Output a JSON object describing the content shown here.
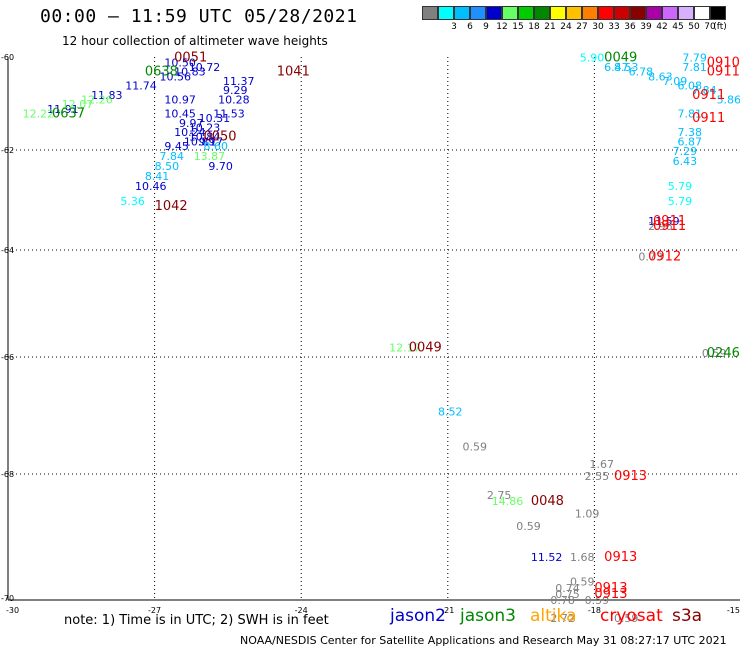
{
  "title": "00:00 – 11:59 UTC 05/28/2021",
  "subtitle": "12 hour collection of altimeter wave heights",
  "scale": {
    "unit": "(ft)",
    "swatches": [
      {
        "color": "#808080",
        "label": ""
      },
      {
        "color": "#00ffff",
        "label": "3"
      },
      {
        "color": "#00bfff",
        "label": "6"
      },
      {
        "color": "#1e90ff",
        "label": "9"
      },
      {
        "color": "#0000cd",
        "label": "12"
      },
      {
        "color": "#66ff66",
        "label": "15"
      },
      {
        "color": "#00cc00",
        "label": "18"
      },
      {
        "color": "#008800",
        "label": "21"
      },
      {
        "color": "#ffff00",
        "label": "24"
      },
      {
        "color": "#ffc000",
        "label": "27"
      },
      {
        "color": "#ff8000",
        "label": "30"
      },
      {
        "color": "#ff0000",
        "label": "33"
      },
      {
        "color": "#cc0000",
        "label": "36"
      },
      {
        "color": "#880000",
        "label": "39"
      },
      {
        "color": "#aa00aa",
        "label": "42"
      },
      {
        "color": "#cc66ff",
        "label": "45"
      },
      {
        "color": "#d8b0ff",
        "label": "50"
      },
      {
        "color": "#ffffff",
        "label": "70"
      },
      {
        "color": "#000000",
        "label": ""
      }
    ]
  },
  "axes": {
    "lat_labels": [
      "-60",
      "-62",
      "-64",
      "-66",
      "-68",
      "-70"
    ],
    "lon_labels": [
      "-30",
      "-27",
      "-24",
      "-21",
      "-18",
      "-15"
    ]
  },
  "chart_data": {
    "type": "scatter",
    "units": "ft",
    "x_label": "longitude",
    "y_label": "latitude",
    "xlim": [
      -30,
      -15
    ],
    "ylim": [
      -70,
      -60
    ],
    "points": [
      {
        "lon": -26.8,
        "lat": -60.2,
        "swh": "10.50",
        "color": "#0000cd"
      },
      {
        "lon": -26.6,
        "lat": -60.4,
        "swh": "10.83",
        "color": "#0000cd"
      },
      {
        "lon": -26.9,
        "lat": -60.5,
        "swh": "10.56",
        "color": "#0000cd"
      },
      {
        "lon": -27.6,
        "lat": -60.7,
        "swh": "11.74",
        "color": "#0000cd"
      },
      {
        "lon": -28.3,
        "lat": -60.9,
        "swh": "11.83",
        "color": "#0000cd"
      },
      {
        "lon": -29.2,
        "lat": -61.2,
        "swh": "11.91",
        "color": "#0000cd"
      },
      {
        "lon": -28.9,
        "lat": -61.1,
        "swh": "12.07",
        "color": "#66ff66"
      },
      {
        "lon": -28.5,
        "lat": -61.0,
        "swh": "12.26",
        "color": "#66ff66"
      },
      {
        "lon": -29.7,
        "lat": -61.3,
        "swh": "12.22",
        "color": "#66ff66"
      },
      {
        "lon": -26.3,
        "lat": -60.3,
        "swh": "10.72",
        "color": "#0000cd"
      },
      {
        "lon": -25.6,
        "lat": -60.6,
        "swh": "11.37",
        "color": "#0000cd"
      },
      {
        "lon": -25.6,
        "lat": -60.8,
        "swh": "9.29",
        "color": "#0000cd"
      },
      {
        "lon": -25.7,
        "lat": -61.0,
        "swh": "10.28",
        "color": "#0000cd"
      },
      {
        "lon": -25.8,
        "lat": -61.3,
        "swh": "11.53",
        "color": "#0000cd"
      },
      {
        "lon": -26.8,
        "lat": -61.0,
        "swh": "10.97",
        "color": "#0000cd"
      },
      {
        "lon": -26.8,
        "lat": -61.3,
        "swh": "10.45",
        "color": "#0000cd"
      },
      {
        "lon": -26.1,
        "lat": -61.4,
        "swh": "10.31",
        "color": "#0000cd"
      },
      {
        "lon": -26.5,
        "lat": -61.5,
        "swh": "9.97",
        "color": "#0000cd"
      },
      {
        "lon": -26.3,
        "lat": -61.6,
        "swh": "10.23",
        "color": "#0000cd"
      },
      {
        "lon": -26.6,
        "lat": -61.7,
        "swh": "10.24",
        "color": "#0000cd"
      },
      {
        "lon": -26.3,
        "lat": -61.8,
        "swh": "10.84",
        "color": "#0000cd"
      },
      {
        "lon": -26.4,
        "lat": -61.9,
        "swh": "10.89",
        "color": "#0000cd"
      },
      {
        "lon": -26.1,
        "lat": -61.9,
        "swh": "9.17",
        "color": "#0000cd"
      },
      {
        "lon": -26.8,
        "lat": -62.0,
        "swh": "9.45",
        "color": "#0000cd"
      },
      {
        "lon": -26.0,
        "lat": -62.0,
        "swh": "8.60",
        "color": "#00bfff"
      },
      {
        "lon": -26.9,
        "lat": -62.2,
        "swh": "7.84",
        "color": "#00bfff"
      },
      {
        "lon": -26.2,
        "lat": -62.2,
        "swh": "13.87",
        "color": "#66ff66"
      },
      {
        "lon": -27.0,
        "lat": -62.4,
        "swh": "8.50",
        "color": "#00bfff"
      },
      {
        "lon": -25.9,
        "lat": -62.4,
        "swh": "9.70",
        "color": "#0000cd"
      },
      {
        "lon": -27.2,
        "lat": -62.6,
        "swh": "8.41",
        "color": "#00bfff"
      },
      {
        "lon": -27.4,
        "lat": -62.8,
        "swh": "10.46",
        "color": "#0000cd"
      },
      {
        "lon": -27.7,
        "lat": -63.1,
        "swh": "5.36",
        "color": "#00ffff"
      },
      {
        "lon": -18.3,
        "lat": -60.1,
        "swh": "5.90",
        "color": "#00ffff"
      },
      {
        "lon": -17.8,
        "lat": -60.3,
        "swh": "6.47",
        "color": "#00bfff"
      },
      {
        "lon": -17.6,
        "lat": -60.3,
        "swh": "8.53",
        "color": "#00bfff"
      },
      {
        "lon": -17.3,
        "lat": -60.4,
        "swh": "6.78",
        "color": "#00bfff"
      },
      {
        "lon": -16.9,
        "lat": -60.5,
        "swh": "8.63",
        "color": "#00bfff"
      },
      {
        "lon": -16.6,
        "lat": -60.6,
        "swh": "7.09",
        "color": "#00bfff"
      },
      {
        "lon": -16.2,
        "lat": -60.1,
        "swh": "7.79",
        "color": "#00bfff"
      },
      {
        "lon": -16.2,
        "lat": -60.3,
        "swh": "7.81",
        "color": "#00bfff"
      },
      {
        "lon": -16.3,
        "lat": -60.7,
        "swh": "6.08",
        "color": "#00bfff"
      },
      {
        "lon": -16.0,
        "lat": -60.8,
        "swh": "7.84",
        "color": "#00bfff"
      },
      {
        "lon": -15.5,
        "lat": -61.0,
        "swh": "5.86",
        "color": "#00bfff"
      },
      {
        "lon": -16.3,
        "lat": -61.3,
        "swh": "7.81",
        "color": "#00bfff"
      },
      {
        "lon": -16.3,
        "lat": -61.7,
        "swh": "7.38",
        "color": "#00bfff"
      },
      {
        "lon": -16.3,
        "lat": -61.9,
        "swh": "6.87",
        "color": "#00bfff"
      },
      {
        "lon": -16.4,
        "lat": -62.1,
        "swh": "7.29",
        "color": "#00bfff"
      },
      {
        "lon": -16.4,
        "lat": -62.3,
        "swh": "6.43",
        "color": "#00bfff"
      },
      {
        "lon": -16.5,
        "lat": -62.8,
        "swh": "5.79",
        "color": "#00ffff"
      },
      {
        "lon": -16.5,
        "lat": -63.1,
        "swh": "5.79",
        "color": "#00ffff"
      },
      {
        "lon": -16.9,
        "lat": -63.5,
        "swh": "11.59",
        "color": "#0000cd"
      },
      {
        "lon": -16.9,
        "lat": -63.6,
        "swh": "2.96",
        "color": "#808080"
      },
      {
        "lon": -17.1,
        "lat": -64.2,
        "swh": "0.73",
        "color": "#808080"
      },
      {
        "lon": -15.8,
        "lat": -66.0,
        "swh": "0.59",
        "color": "#808080"
      },
      {
        "lon": -22.2,
        "lat": -65.9,
        "swh": "12.17",
        "color": "#66ff66"
      },
      {
        "lon": -21.2,
        "lat": -67.0,
        "swh": "8.52",
        "color": "#00bfff"
      },
      {
        "lon": -20.7,
        "lat": -67.6,
        "swh": "0.59",
        "color": "#808080"
      },
      {
        "lon": -20.2,
        "lat": -68.4,
        "swh": "2.75",
        "color": "#808080"
      },
      {
        "lon": -20.1,
        "lat": -68.5,
        "swh": "14.86",
        "color": "#66ff66"
      },
      {
        "lon": -19.6,
        "lat": -68.9,
        "swh": "0.59",
        "color": "#808080"
      },
      {
        "lon": -18.1,
        "lat": -67.9,
        "swh": "1.67",
        "color": "#808080"
      },
      {
        "lon": -18.2,
        "lat": -68.1,
        "swh": "2.55",
        "color": "#808080"
      },
      {
        "lon": -18.4,
        "lat": -68.7,
        "swh": "1.09",
        "color": "#808080"
      },
      {
        "lon": -19.3,
        "lat": -69.4,
        "swh": "11.52",
        "color": "#0000cd"
      },
      {
        "lon": -18.5,
        "lat": -69.4,
        "swh": "1.68",
        "color": "#808080"
      },
      {
        "lon": -18.5,
        "lat": -69.8,
        "swh": "0.59",
        "color": "#808080"
      },
      {
        "lon": -18.8,
        "lat": -69.9,
        "swh": "0.74",
        "color": "#808080"
      },
      {
        "lon": -18.8,
        "lat": -70.0,
        "swh": "0.75",
        "color": "#808080"
      },
      {
        "lon": -18.9,
        "lat": -70.1,
        "swh": "0.78",
        "color": "#808080"
      },
      {
        "lon": -18.2,
        "lat": -70.1,
        "swh": "0.59",
        "color": "#808080"
      },
      {
        "lon": -18.9,
        "lat": -70.4,
        "swh": "2.72",
        "color": "#808080"
      },
      {
        "lon": -17.6,
        "lat": -70.4,
        "swh": "0.59",
        "color": "#808080"
      }
    ],
    "time_labels": [
      {
        "lon": -26.6,
        "lat": -60.1,
        "text": "0051",
        "color": "#880000"
      },
      {
        "lon": -27.2,
        "lat": -60.4,
        "text": "0638",
        "color": "#008800"
      },
      {
        "lon": -29.1,
        "lat": -61.3,
        "text": "0637",
        "color": "#008800"
      },
      {
        "lon": -24.5,
        "lat": -60.4,
        "text": "1041",
        "color": "#880000"
      },
      {
        "lon": -26.0,
        "lat": -61.8,
        "text": "0050",
        "color": "#880000"
      },
      {
        "lon": -27.0,
        "lat": -63.2,
        "text": "1042",
        "color": "#880000"
      },
      {
        "lon": -17.8,
        "lat": -60.1,
        "text": "0049",
        "color": "#008800"
      },
      {
        "lon": -15.7,
        "lat": -60.2,
        "text": "0910",
        "color": "#ff0000"
      },
      {
        "lon": -15.7,
        "lat": -60.4,
        "text": "0911",
        "color": "#ff0000"
      },
      {
        "lon": -16.0,
        "lat": -60.9,
        "text": "0911",
        "color": "#ff0000"
      },
      {
        "lon": -16.0,
        "lat": -61.4,
        "text": "0911",
        "color": "#ff0000"
      },
      {
        "lon": -16.8,
        "lat": -63.5,
        "text": "0911",
        "color": "#ff0000"
      },
      {
        "lon": -16.8,
        "lat": -63.6,
        "text": "0911",
        "color": "#ff0000"
      },
      {
        "lon": -16.9,
        "lat": -64.2,
        "text": "0912",
        "color": "#ff0000"
      },
      {
        "lon": -15.7,
        "lat": -66.0,
        "text": "0246",
        "color": "#008800"
      },
      {
        "lon": -21.8,
        "lat": -65.9,
        "text": "0049",
        "color": "#880000"
      },
      {
        "lon": -17.6,
        "lat": -68.1,
        "text": "0913",
        "color": "#ff0000"
      },
      {
        "lon": -19.3,
        "lat": -68.5,
        "text": "0048",
        "color": "#880000"
      },
      {
        "lon": -17.8,
        "lat": -69.4,
        "text": "0913",
        "color": "#ff0000"
      },
      {
        "lon": -18.0,
        "lat": -69.9,
        "text": "0913",
        "color": "#ff0000"
      },
      {
        "lon": -18.0,
        "lat": -70.0,
        "text": "0913",
        "color": "#ff0000"
      }
    ]
  },
  "note": "note: 1) Time is in UTC; 2) SWH is in feet",
  "legend": [
    {
      "name": "jason2",
      "color": "#0000cd"
    },
    {
      "name": "jason3",
      "color": "#008800"
    },
    {
      "name": "altika",
      "color": "#ffa500"
    },
    {
      "name": "cryosat",
      "color": "#ff0000"
    },
    {
      "name": "s3a",
      "color": "#880000"
    }
  ],
  "footer": "NOAA/NESDIS Center for Satellite Applications and Research   May 31 08:27:17 UTC 2021"
}
